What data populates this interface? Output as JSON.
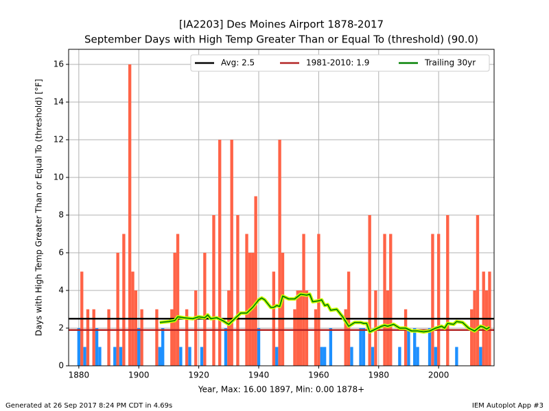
{
  "chart_data": {
    "type": "bar",
    "title": "[IA2203] Des Moines Airport 1878-2017",
    "subtitle": "September Days with High Temp Greater Than or Equal To (threshold) (90.0)",
    "x_label": "Year, Max: 16.00 1897, Min: 0.00 1878+",
    "y_label": "Days with High Temp Greater Than or Equal To (threshold) [°F]",
    "footer_left": "Generated at 26 Sep 2017 8:24 PM CDT in 4.69s",
    "footer_right": "IEM Autoplot App #3",
    "x": [
      1878,
      1879,
      1880,
      1881,
      1882,
      1883,
      1884,
      1885,
      1886,
      1887,
      1888,
      1889,
      1890,
      1891,
      1892,
      1893,
      1894,
      1895,
      1896,
      1897,
      1898,
      1899,
      1900,
      1901,
      1902,
      1903,
      1904,
      1905,
      1906,
      1907,
      1908,
      1909,
      1910,
      1911,
      1912,
      1913,
      1914,
      1915,
      1916,
      1917,
      1918,
      1919,
      1920,
      1921,
      1922,
      1923,
      1924,
      1925,
      1926,
      1927,
      1928,
      1929,
      1930,
      1931,
      1932,
      1933,
      1934,
      1935,
      1936,
      1937,
      1938,
      1939,
      1940,
      1941,
      1942,
      1943,
      1944,
      1945,
      1946,
      1947,
      1948,
      1949,
      1950,
      1951,
      1952,
      1953,
      1954,
      1955,
      1956,
      1957,
      1958,
      1959,
      1960,
      1961,
      1962,
      1963,
      1964,
      1965,
      1966,
      1967,
      1968,
      1969,
      1970,
      1971,
      1972,
      1973,
      1974,
      1975,
      1976,
      1977,
      1978,
      1979,
      1980,
      1981,
      1982,
      1983,
      1984,
      1985,
      1986,
      1987,
      1988,
      1989,
      1990,
      1991,
      1992,
      1993,
      1994,
      1995,
      1996,
      1997,
      1998,
      1999,
      2000,
      2001,
      2002,
      2003,
      2004,
      2005,
      2006,
      2007,
      2008,
      2009,
      2010,
      2011,
      2012,
      2013,
      2014,
      2015,
      2016,
      2017
    ],
    "values": [
      0,
      0,
      2,
      5,
      1,
      3,
      0,
      3,
      2,
      1,
      0,
      0,
      3,
      0,
      1,
      6,
      1,
      7,
      0,
      16,
      5,
      4,
      2,
      3,
      0,
      0,
      0,
      0,
      3,
      1,
      2,
      0,
      0,
      3,
      6,
      7,
      1,
      0,
      3,
      1,
      0,
      4,
      0,
      1,
      6,
      0,
      0,
      8,
      0,
      12,
      0,
      2,
      4,
      12,
      0,
      8,
      0,
      0,
      7,
      6,
      6,
      9,
      2,
      0,
      0,
      0,
      0,
      5,
      1,
      12,
      6,
      0,
      0,
      0,
      3,
      4,
      4,
      7,
      4,
      0,
      0,
      3,
      7,
      1,
      1,
      0,
      2,
      0,
      0,
      0,
      0,
      3,
      5,
      1,
      0,
      0,
      2,
      2,
      0,
      8,
      1,
      4,
      0,
      0,
      7,
      4,
      7,
      0,
      0,
      1,
      0,
      3,
      2,
      0,
      2,
      1,
      0,
      0,
      0,
      2,
      7,
      1,
      7,
      0,
      0,
      8,
      0,
      0,
      1,
      0,
      0,
      0,
      0,
      3,
      4,
      8,
      1,
      5,
      4,
      5
    ],
    "above_color": "#ff6347",
    "below_color": "#1e90ff",
    "reference_lines": [
      {
        "name": "Avg: 2.5",
        "value": 2.5,
        "color": "#000000"
      },
      {
        "name": "1981-2010: 1.9",
        "value": 1.9,
        "color": "#b22222"
      }
    ],
    "series": [
      {
        "name": "Trailing 30yr",
        "color": "#008000",
        "x": [
          1907,
          1910,
          1912,
          1913,
          1915,
          1918,
          1920,
          1922,
          1923,
          1924,
          1926,
          1928,
          1930,
          1932,
          1934,
          1936,
          1938,
          1940,
          1941,
          1942,
          1944,
          1945,
          1946,
          1947,
          1948,
          1950,
          1952,
          1954,
          1956,
          1957,
          1958,
          1960,
          1961,
          1962,
          1963,
          1964,
          1966,
          1968,
          1970,
          1972,
          1974,
          1975,
          1976,
          1977,
          1979,
          1981,
          1982,
          1983,
          1985,
          1987,
          1989,
          1991,
          1993,
          1995,
          1997,
          1999,
          2001,
          2002,
          2003,
          2005,
          2006,
          2008,
          2010,
          2012,
          2014,
          2015,
          2016,
          2017
        ],
        "values": [
          2.3,
          2.35,
          2.4,
          2.6,
          2.55,
          2.5,
          2.6,
          2.55,
          2.7,
          2.5,
          2.55,
          2.4,
          2.2,
          2.5,
          2.8,
          2.8,
          3.1,
          3.5,
          3.6,
          3.5,
          3.1,
          3.1,
          3.2,
          3.15,
          3.7,
          3.55,
          3.55,
          3.8,
          3.75,
          3.8,
          3.4,
          3.45,
          3.5,
          3.2,
          3.25,
          2.95,
          3.0,
          2.6,
          2.1,
          2.3,
          2.3,
          2.25,
          2.25,
          1.8,
          1.95,
          2.1,
          2.15,
          2.1,
          2.2,
          2.0,
          2.0,
          1.85,
          1.85,
          1.8,
          1.85,
          2.0,
          2.1,
          2.0,
          2.25,
          2.2,
          2.35,
          2.3,
          2.0,
          1.85,
          2.1,
          2.05,
          1.95,
          2.05
        ]
      }
    ],
    "xlim": [
      1876.6,
      2018.5
    ],
    "ylim": [
      0,
      16.8
    ],
    "xticks": [
      1880,
      1900,
      1920,
      1940,
      1960,
      1980,
      2000
    ],
    "yticks": [
      0,
      2,
      4,
      6,
      8,
      10,
      12,
      14,
      16
    ],
    "grid": true,
    "legend": "upper right"
  }
}
